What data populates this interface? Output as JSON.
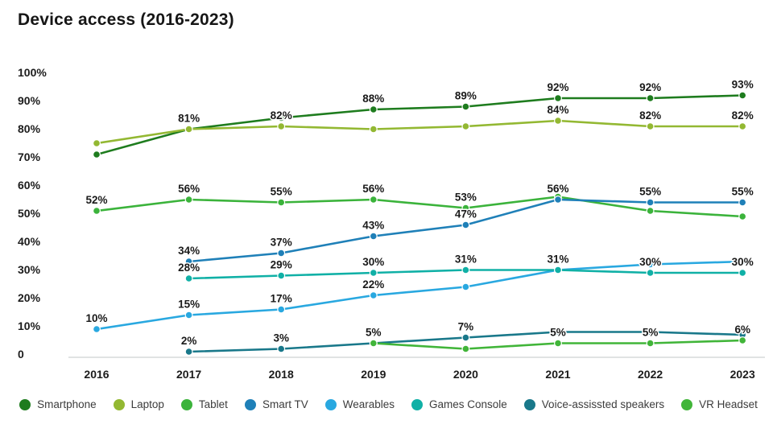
{
  "title": "Device access (2016-2023)",
  "chart_data": {
    "type": "line",
    "x": [
      2016,
      2017,
      2018,
      2019,
      2020,
      2021,
      2022,
      2023
    ],
    "title": "Device access (2016-2023)",
    "xlabel": "",
    "ylabel": "",
    "ylim": [
      0,
      100
    ],
    "y_ticks": [
      "100%",
      "90%",
      "80%",
      "70%",
      "60%",
      "50%",
      "40%",
      "30%",
      "20%",
      "10%",
      "0"
    ],
    "grid": false,
    "legend_position": "bottom",
    "series": [
      {
        "name": "Smartphone",
        "color": "#1e7c1e",
        "values": [
          72,
          81,
          85,
          88,
          89,
          92,
          92,
          93
        ],
        "labels": [
          null,
          null,
          null,
          "88%",
          "89%",
          "92%",
          "92%",
          "93%"
        ]
      },
      {
        "name": "Laptop",
        "color": "#93b832",
        "values": [
          76,
          81,
          82,
          81,
          82,
          84,
          82,
          82
        ],
        "labels": [
          null,
          "81%",
          "82%",
          null,
          null,
          "84%",
          "82%",
          "82%"
        ]
      },
      {
        "name": "Tablet",
        "color": "#3bb33b",
        "values": [
          52,
          56,
          55,
          56,
          53,
          57,
          52,
          50
        ],
        "labels": [
          "52%",
          "56%",
          "55%",
          "56%",
          "53%",
          null,
          null,
          null
        ]
      },
      {
        "name": "Smart TV",
        "color": "#1f80b8",
        "values": [
          null,
          34,
          37,
          43,
          47,
          56,
          55,
          55
        ],
        "labels": [
          null,
          "34%",
          "37%",
          "43%",
          "47%",
          "56%",
          "55%",
          "55%"
        ]
      },
      {
        "name": "Wearables",
        "color": "#29a8e0",
        "values": [
          10,
          15,
          17,
          22,
          25,
          31,
          33,
          34
        ],
        "labels": [
          "10%",
          "15%",
          "17%",
          "22%",
          null,
          null,
          null,
          null
        ]
      },
      {
        "name": "Games Console",
        "color": "#10b0a6",
        "values": [
          null,
          28,
          29,
          30,
          31,
          31,
          30,
          30
        ],
        "labels": [
          null,
          "28%",
          "29%",
          "30%",
          "31%",
          "31%",
          "30%",
          "30%"
        ]
      },
      {
        "name": "Voice-assissted speakers",
        "color": "#19788a",
        "values": [
          null,
          2,
          3,
          5,
          7,
          9,
          9,
          8
        ],
        "labels": [
          null,
          "2%",
          "3%",
          null,
          "7%",
          null,
          null,
          null
        ]
      },
      {
        "name": "VR Headset",
        "color": "#41b539",
        "values": [
          null,
          null,
          null,
          5,
          3,
          5,
          5,
          6
        ],
        "labels": [
          null,
          null,
          null,
          "5%",
          null,
          "5%",
          "5%",
          "6%"
        ]
      }
    ]
  },
  "axis": {
    "x_labels": [
      "2016",
      "2017",
      "2018",
      "2019",
      "2020",
      "2021",
      "2022",
      "2023"
    ],
    "y_labels": [
      "100%",
      "90%",
      "80%",
      "70%",
      "60%",
      "50%",
      "40%",
      "30%",
      "20%",
      "10%",
      "0"
    ]
  },
  "colors": {
    "background": "#ffffff",
    "axis_line": "#d5dada",
    "text": "#1c1c1c",
    "legend_text": "#3c3c3c"
  }
}
